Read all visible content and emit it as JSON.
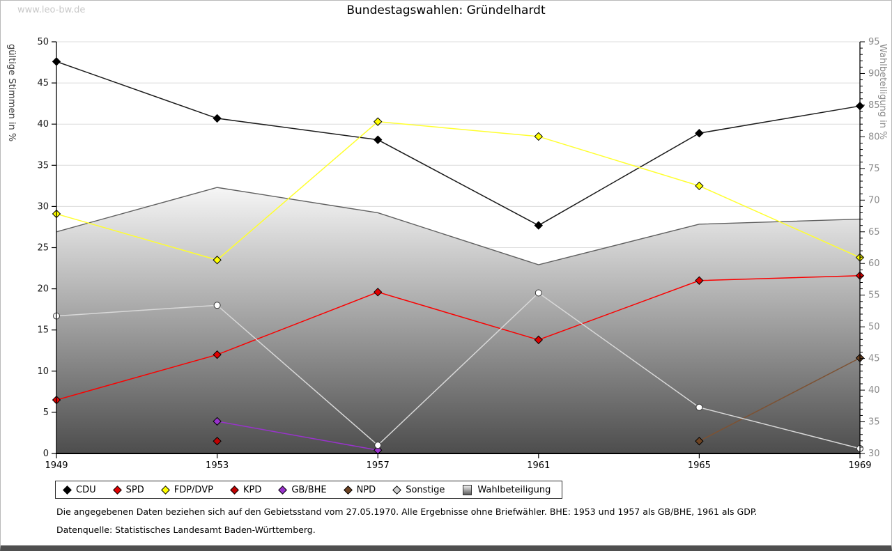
{
  "watermark": "www.leo-bw.de",
  "title": "Bundestagswahlen: Gründelhardt",
  "chart_data": {
    "type": "line",
    "x": [
      1949,
      1953,
      1957,
      1961,
      1965,
      1969
    ],
    "left_axis": {
      "label": "gültige Stimmen in %",
      "min": 0,
      "max": 50,
      "tick_step": 5
    },
    "right_axis": {
      "label": "Wahlbeteiligung in %",
      "min": 30,
      "max": 95,
      "tick_step": 5,
      "minor_step": 1
    },
    "series": [
      {
        "name": "CDU",
        "color": "#1a1a1a",
        "fill": "#000000",
        "marker": "diamond",
        "values": [
          47.6,
          40.7,
          38.1,
          27.7,
          38.9,
          42.2
        ]
      },
      {
        "name": "SPD",
        "color": "#fb0000",
        "fill": "#e00000",
        "marker": "diamond",
        "values": [
          6.5,
          12.0,
          19.6,
          13.8,
          21.0,
          21.6
        ]
      },
      {
        "name": "FDP/DVP",
        "color": "#ffff2e",
        "fill": "#ffff00",
        "marker": "diamond",
        "values": [
          29.1,
          23.5,
          40.3,
          38.5,
          32.5,
          23.8
        ]
      },
      {
        "name": "KPD",
        "color": "#c00000",
        "fill": "#c00000",
        "marker": "diamond",
        "values": [
          null,
          1.5,
          null,
          null,
          null,
          null
        ]
      },
      {
        "name": "GB/BHE",
        "color": "#9933cc",
        "fill": "#9933cc",
        "marker": "diamond",
        "values": [
          null,
          3.9,
          0.4,
          null,
          null,
          null
        ]
      },
      {
        "name": "NPD",
        "color": "#7d5233",
        "fill": "#6e4423",
        "marker": "diamond",
        "values": [
          null,
          null,
          null,
          null,
          1.5,
          11.6
        ]
      },
      {
        "name": "Sonstige",
        "color": "#d8d8d8",
        "fill": "#ffffff",
        "marker": "circle",
        "values": [
          16.7,
          18.0,
          1.0,
          19.5,
          5.6,
          0.6
        ]
      }
    ],
    "area_series": {
      "name": "Wahlbeteiligung",
      "axis": "right",
      "values": [
        65.0,
        72.0,
        68.0,
        59.8,
        66.2,
        67.0
      ],
      "gradient_top": "#f6f6f6",
      "gradient_bottom": "#4d4d4d",
      "border_color": "#5f5f5f"
    },
    "grid_color": "#dcdcdc",
    "spine_color": "#000000",
    "left_tick_color": "#1a1a1a",
    "right_tick_color": "#8a8a8a",
    "x_tick_color": "#000000",
    "left_label_color": "#3a3a3a",
    "right_label_color": "#8a8a8a"
  },
  "legend": {
    "note": "items generated from chart_data series names"
  },
  "footnotes": {
    "line1": "Die angegebenen Daten beziehen sich auf den Gebietsstand vom 27.05.1970. Alle Ergebnisse ohne Briefwähler. BHE: 1953 und 1957 als GB/BHE, 1961 als GDP.",
    "line2": "Datenquelle: Statistisches Landesamt Baden-Württemberg."
  }
}
